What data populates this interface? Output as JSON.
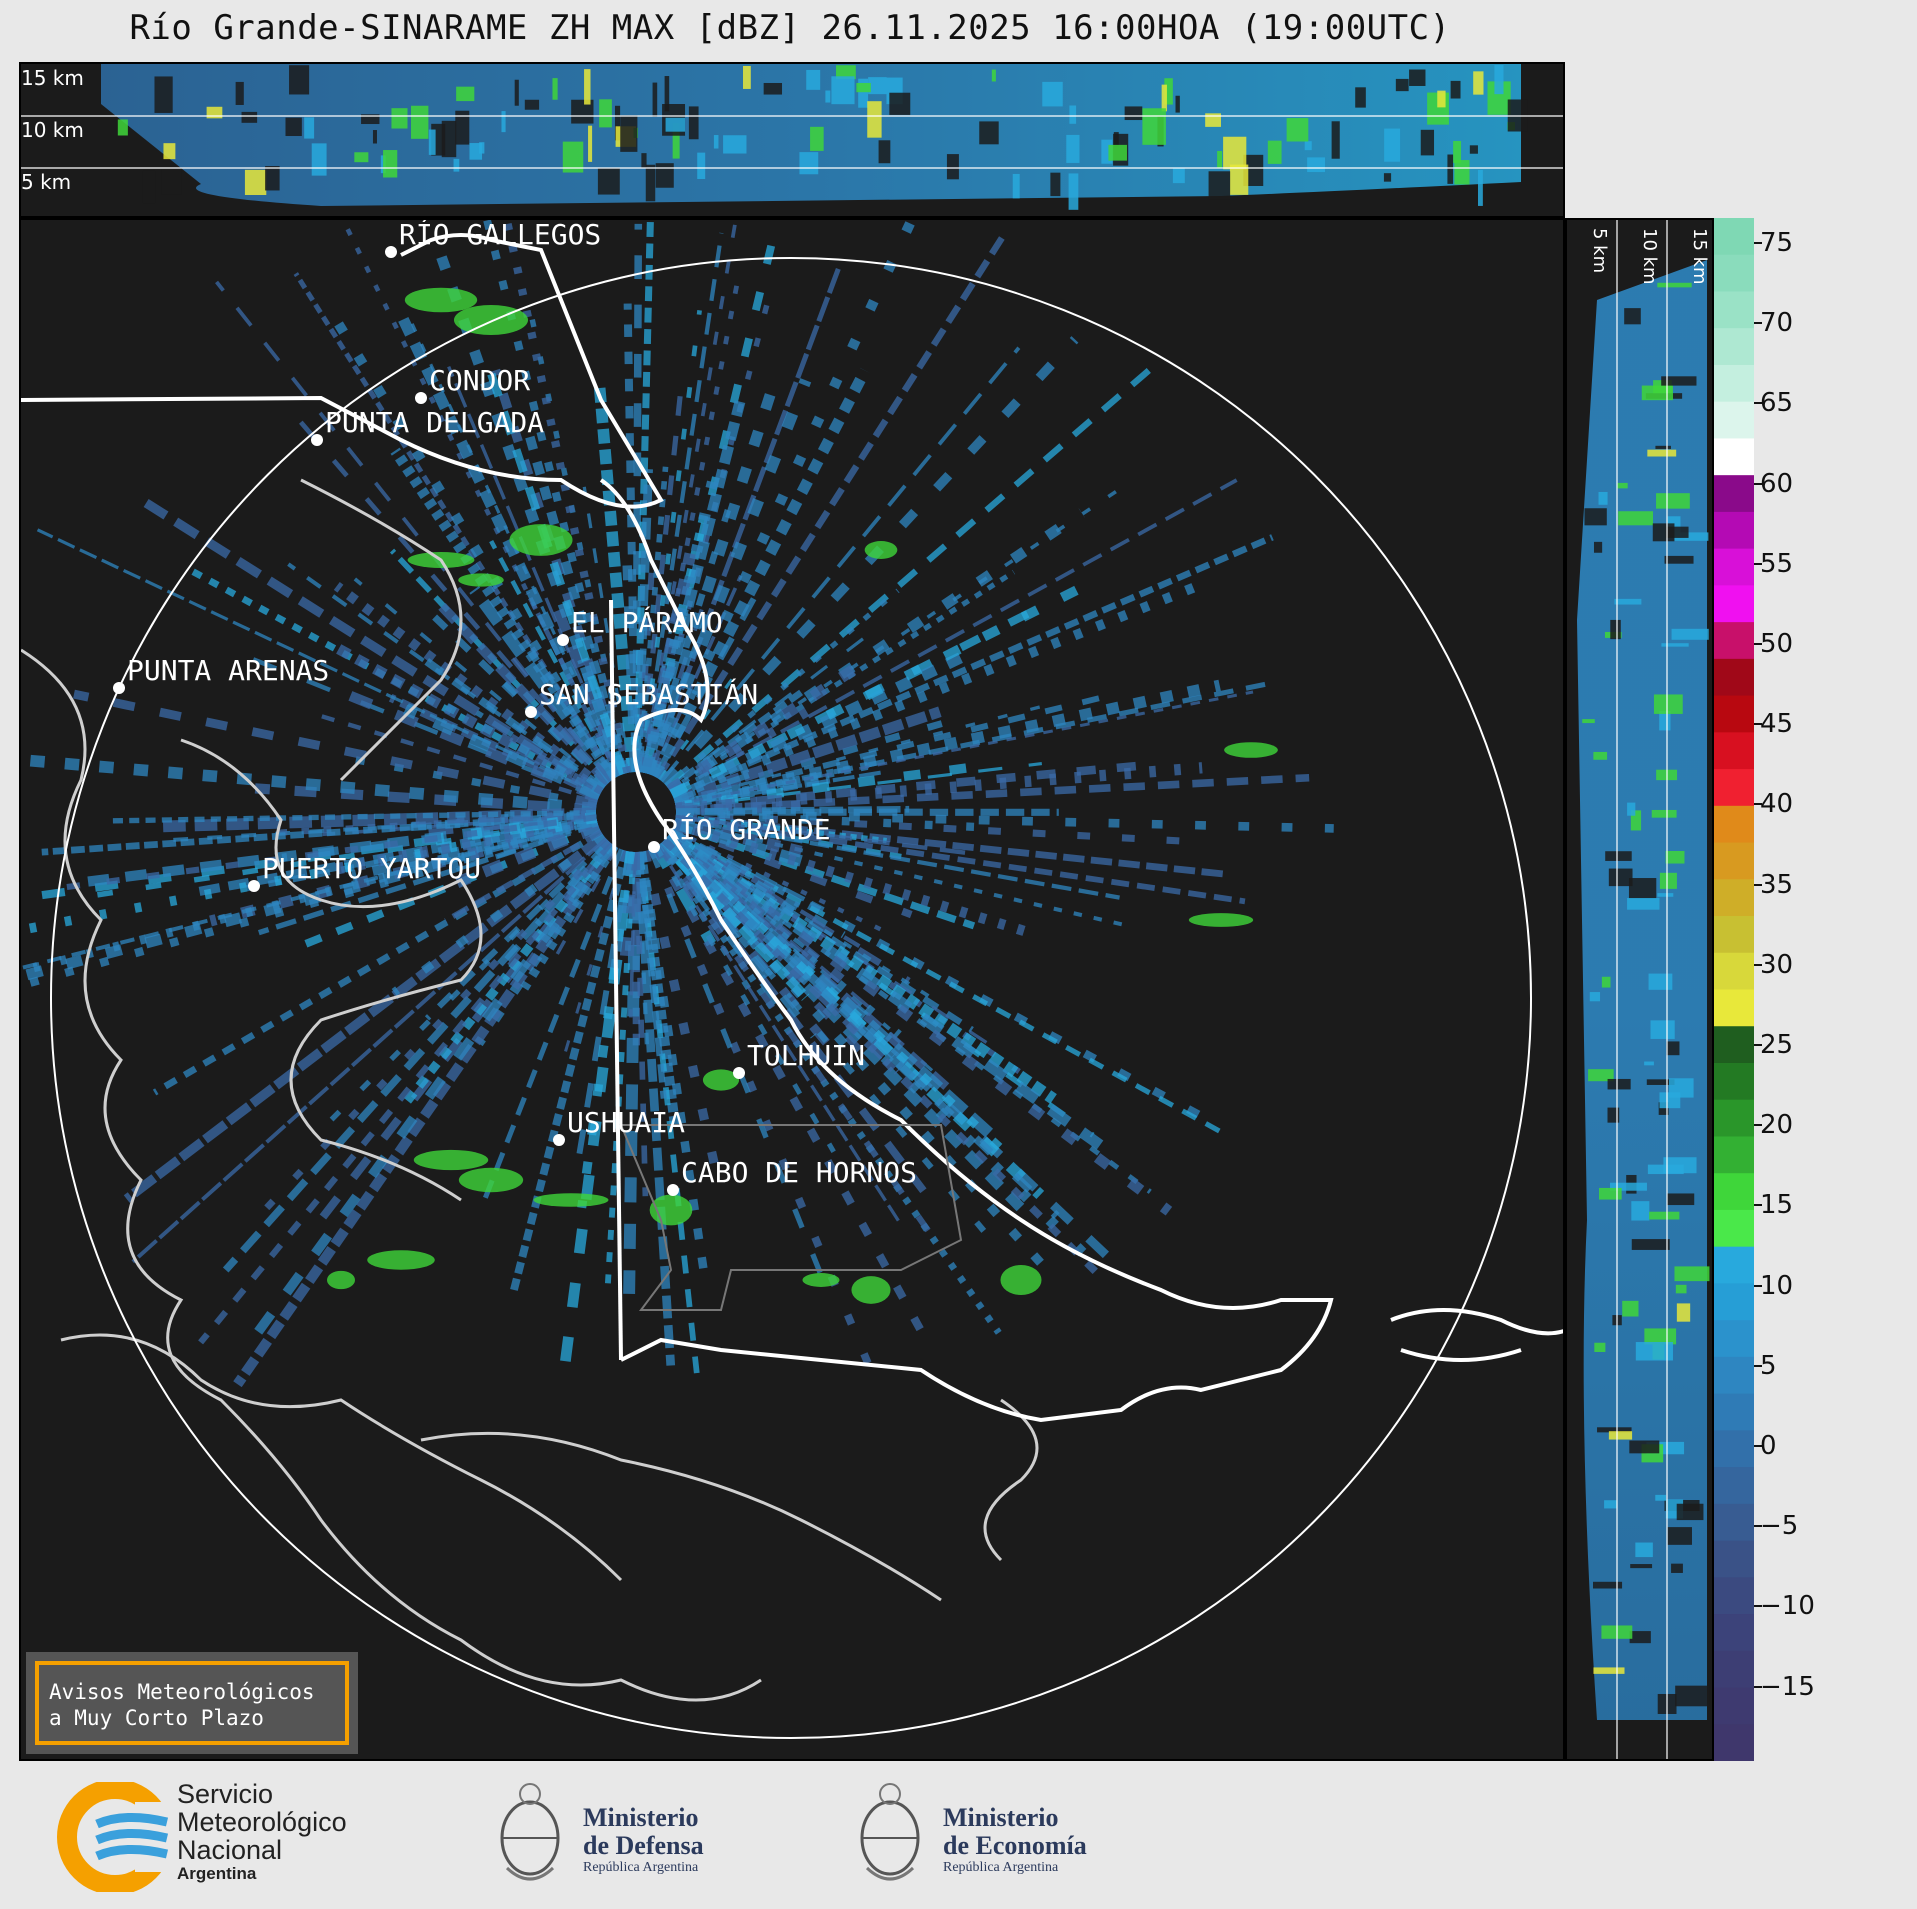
{
  "title": "Río Grande-SINARAME ZH MAX [dBZ] 26.11.2025 16:00HOA (19:00UTC)",
  "top_panel": {
    "height_labels": [
      "15 km",
      "10 km",
      "5 km"
    ]
  },
  "side_panel": {
    "height_labels": [
      "5 km",
      "10 km",
      "15 km"
    ]
  },
  "map": {
    "cities": [
      {
        "name": "RÍO GALLEGOS"
      },
      {
        "name": "CONDOR"
      },
      {
        "name": "PUNTA DELGADA"
      },
      {
        "name": "EL PÁRAMO"
      },
      {
        "name": "PUNTA ARENAS"
      },
      {
        "name": "SAN SEBASTIÁN"
      },
      {
        "name": "RÍO GRANDE"
      },
      {
        "name": "PUERTO YARTOU"
      },
      {
        "name": "TOLHUIN"
      },
      {
        "name": "USHUAIA"
      },
      {
        "name": "CABO DE HORNOS"
      }
    ]
  },
  "colorbar": {
    "unit": "dBZ",
    "ticks": [
      "75",
      "70",
      "65",
      "60",
      "55",
      "50",
      "45",
      "40",
      "35",
      "30",
      "25",
      "20",
      "15",
      "10",
      "5",
      "0",
      "−5",
      "−10",
      "−15"
    ],
    "colors": {
      "low": "#3a3f78",
      "blue": "#2e86c1",
      "cyan": "#28a9dd",
      "green": "#3fd63a",
      "yellow": "#e8e83a",
      "orange": "#e08a1a",
      "red": "#d81020",
      "magenta": "#e010e0",
      "white": "#ffffff",
      "mint": "#90e0c0"
    }
  },
  "notice": {
    "line1": "Avisos Meteorológicos",
    "line2": "a Muy Corto Plazo"
  },
  "logos": {
    "smn": {
      "line1": "Servicio",
      "line2": "Meteorológico",
      "line3": "Nacional",
      "line4": "Argentina"
    },
    "defensa": {
      "line1": "Ministerio",
      "line2": "de Defensa",
      "line3": "República Argentina"
    },
    "economia": {
      "line1": "Ministerio",
      "line2": "de Economía",
      "line3": "República Argentina"
    }
  }
}
